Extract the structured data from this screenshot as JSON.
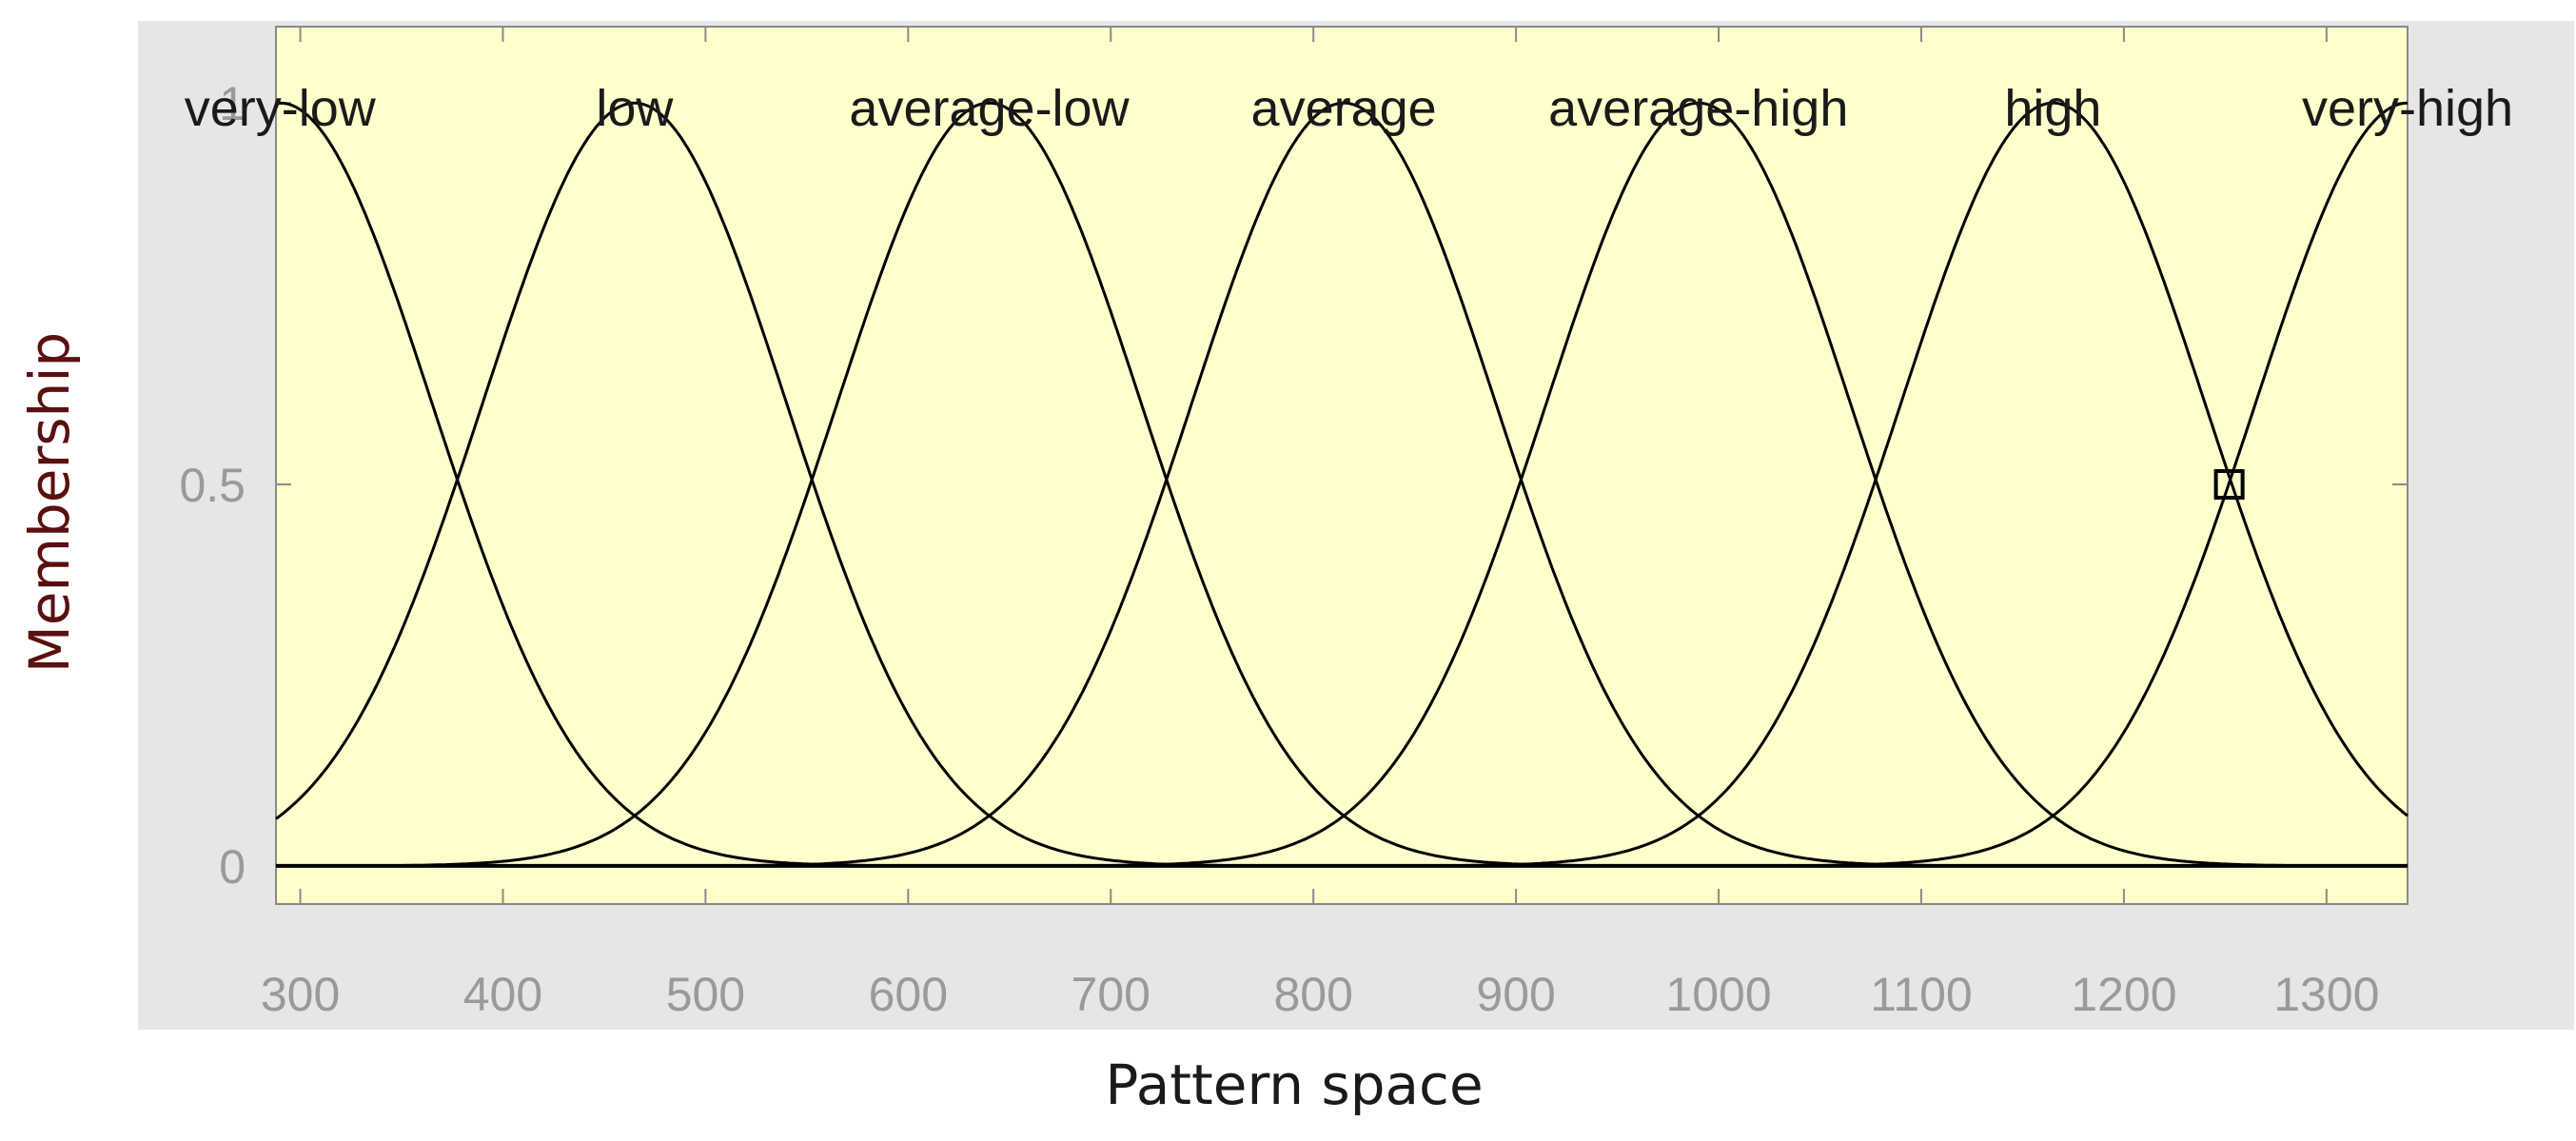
{
  "chart_data": {
    "type": "line",
    "title": "",
    "xlabel": "Pattern space",
    "ylabel": "Membership",
    "xlim": [
      288,
      1340
    ],
    "ylim": [
      -0.05,
      1.1
    ],
    "x_ticks": [
      300,
      400,
      500,
      600,
      700,
      800,
      900,
      1000,
      1100,
      1200,
      1300
    ],
    "x_tick_labels": [
      "300",
      "400",
      "500",
      "600",
      "700",
      "800",
      "900",
      "1000",
      "1100",
      "1200",
      "1300"
    ],
    "y_ticks": [
      0,
      0.5,
      1
    ],
    "y_tick_labels": [
      "0",
      "0.5",
      "1"
    ],
    "grid": false,
    "background": "#ffffcc",
    "frame_background": "#e6e6e6",
    "curve_shape": "gaussian",
    "curve_sigma": 75,
    "series": [
      {
        "name": "very-low",
        "center": 290
      },
      {
        "name": "low",
        "center": 465
      },
      {
        "name": "average-low",
        "center": 640
      },
      {
        "name": "average",
        "center": 815
      },
      {
        "name": "average-high",
        "center": 990
      },
      {
        "name": "high",
        "center": 1165
      },
      {
        "name": "very-high",
        "center": 1340
      }
    ],
    "marker": {
      "x": 1252,
      "y": 0.5,
      "shape": "square"
    }
  }
}
